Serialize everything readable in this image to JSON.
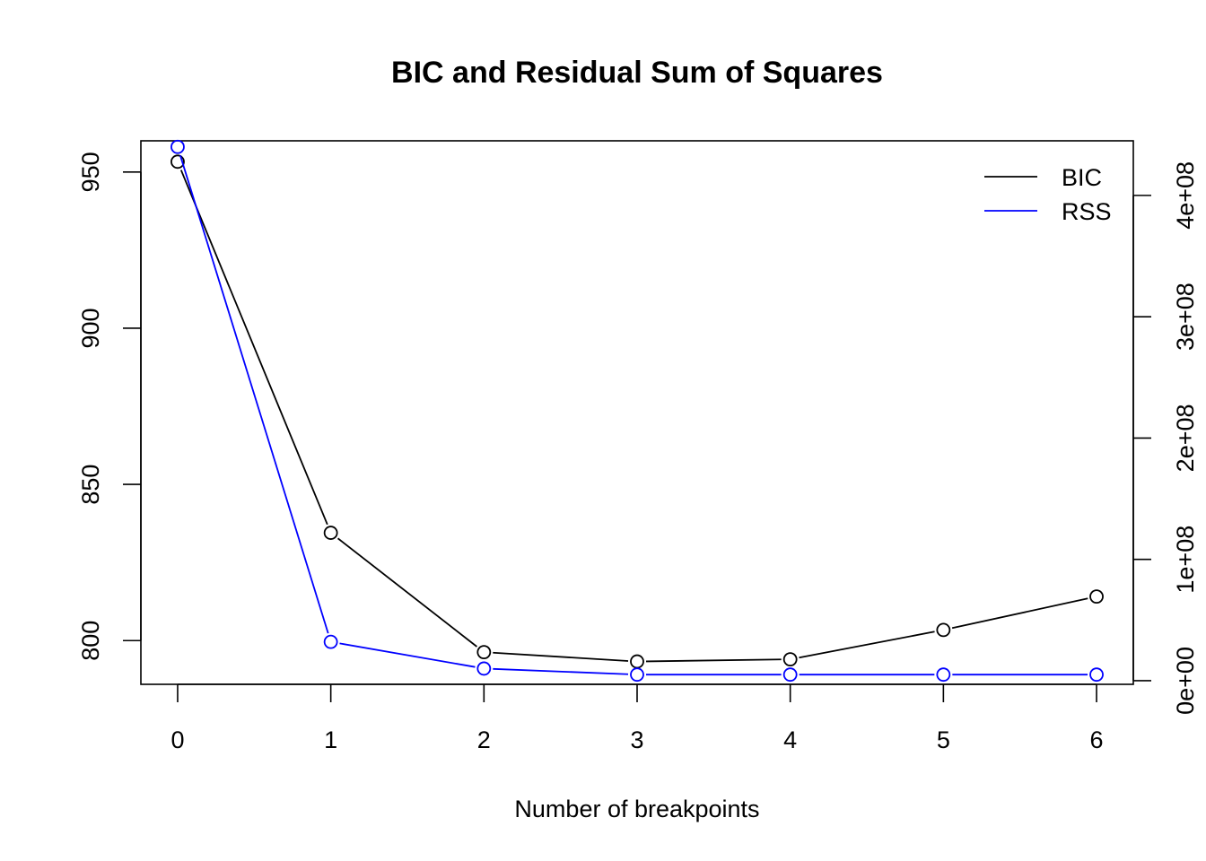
{
  "chart_data": {
    "type": "line",
    "title": "BIC and Residual Sum of Squares",
    "xlabel": "Number of breakpoints",
    "x": [
      0,
      1,
      2,
      3,
      4,
      5,
      6
    ],
    "xlim": [
      -0.24,
      6.24
    ],
    "ylim_left": [
      786,
      960
    ],
    "ylim_right": [
      -3000000,
      445000000
    ],
    "left_ticks": [
      {
        "value": 800,
        "label": "800"
      },
      {
        "value": 850,
        "label": "850"
      },
      {
        "value": 900,
        "label": "900"
      },
      {
        "value": 950,
        "label": "950"
      }
    ],
    "right_ticks": [
      {
        "value": 0,
        "label": "0e+00"
      },
      {
        "value": 100000000,
        "label": "1e+08"
      },
      {
        "value": 200000000,
        "label": "2e+08"
      },
      {
        "value": 300000000,
        "label": "3e+08"
      },
      {
        "value": 400000000,
        "label": "4e+08"
      }
    ],
    "x_ticks": [
      "0",
      "1",
      "2",
      "3",
      "4",
      "5",
      "6"
    ],
    "series": [
      {
        "name": "BIC",
        "axis": "left",
        "color": "#000000",
        "values": [
          953.3,
          834.5,
          796.3,
          793.3,
          794.0,
          803.4,
          814.1
        ]
      },
      {
        "name": "RSS",
        "axis": "right",
        "color": "#0000ff",
        "values": [
          440000000,
          32000000,
          10000000,
          5000000,
          5000000,
          5000000,
          5000000
        ]
      }
    ],
    "legend": {
      "position": "top-right"
    },
    "grid": false
  }
}
